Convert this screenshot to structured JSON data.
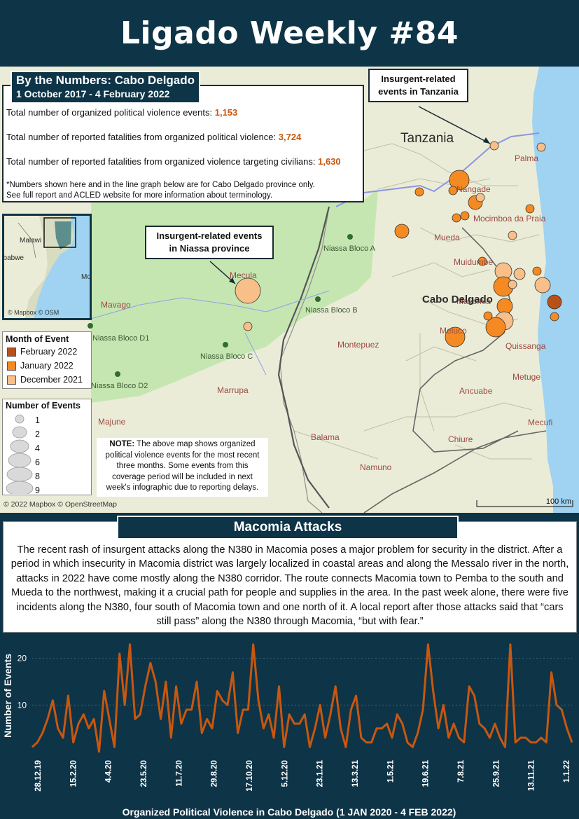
{
  "header": {
    "title": "Ligado Weekly #84"
  },
  "numbers": {
    "title": "By the Numbers: Cabo Delgado",
    "subtitle": "1 October 2017 - 4 February 2022",
    "stat1_label": "Total number of organized political violence events: ",
    "stat1_value": "1,153",
    "stat2_label": "Total number of reported fatalities from organized political violence: ",
    "stat2_value": "3,724",
    "stat3_label": "Total number of reported fatalities from organized violence targeting civilians: ",
    "stat3_value": "1,630",
    "note_line1": "*Numbers shown here and in the line graph below are for Cabo Delgado province only.",
    "note_line2": "See full report and ACLED website for more information about terminology."
  },
  "map": {
    "callouts": {
      "tanzania_events": "Insurgent-related events in Tanzania",
      "niassa_events": "Insurgent-related events in Niassa province"
    },
    "country_label": "Tanzania",
    "province_label": "Cabo Delgado",
    "district_labels": [
      "Palma",
      "Nangade",
      "Mocimboa da Praia",
      "Mueda",
      "Muidumbe",
      "Meluco",
      "Macomia",
      "Quissanga",
      "Metuge",
      "Ancuabe",
      "Montepuez",
      "Chiure",
      "Mecufi",
      "Balama",
      "Namuno",
      "Marrupa",
      "Mecula",
      "Mavago",
      "Majune"
    ],
    "concession_labels": [
      "Niassa Bloco A",
      "Niassa Bloco B",
      "Niassa Bloco C",
      "Niassa Bloco D1",
      "Niassa Bloco D2"
    ],
    "inset_labels": [
      "Malawi",
      "Zimbabwe",
      "Mozambique"
    ],
    "inset_attribution": "© Mapbox © OSM",
    "attribution": "© 2022 Mapbox © OpenStreetMap",
    "scale": "100 km",
    "note_bold": "NOTE:",
    "note_text": " The above map shows organized political violence events for the most recent three months. Some events from this coverage period will be included in next week's infographic due to reporting delays.",
    "colors": {
      "feb_2022": "#b8501a",
      "jan_2022": "#f58a23",
      "dec_2021": "#f8bf88",
      "reserve": "#c6e6b1",
      "land": "#ebecd7",
      "water": "#9fd3f1"
    },
    "events": [
      {
        "month": "dec_2021",
        "count": 1,
        "place": "Tanzania border"
      },
      {
        "month": "dec_2021",
        "count": 1,
        "place": "Palma"
      },
      {
        "month": "jan_2022",
        "count": 1,
        "place": "Tanzania"
      },
      {
        "month": "jan_2022",
        "count": 6,
        "place": "Nangade"
      },
      {
        "month": "jan_2022",
        "count": 3,
        "place": "Nangade"
      },
      {
        "month": "jan_2022",
        "count": 1,
        "place": "Nangade"
      },
      {
        "month": "jan_2022",
        "count": 3,
        "place": "Nangade"
      },
      {
        "month": "dec_2021",
        "count": 1,
        "place": "Nangade"
      },
      {
        "month": "jan_2022",
        "count": 1,
        "place": "Mocimboa da Praia"
      },
      {
        "month": "jan_2022",
        "count": 1,
        "place": "Mocimboa da Praia"
      },
      {
        "month": "jan_2022",
        "count": 1,
        "place": "Mocimboa da Praia"
      },
      {
        "month": "dec_2021",
        "count": 1,
        "place": "Mocimboa da Praia"
      },
      {
        "month": "jan_2022",
        "count": 3,
        "place": "Mueda"
      },
      {
        "month": "jan_2022",
        "count": 1,
        "place": "Muidumbe"
      },
      {
        "month": "dec_2021",
        "count": 4,
        "place": "Macomia"
      },
      {
        "month": "jan_2022",
        "count": 6,
        "place": "Macomia"
      },
      {
        "month": "dec_2021",
        "count": 2,
        "place": "Macomia"
      },
      {
        "month": "jan_2022",
        "count": 3,
        "place": "Macomia"
      },
      {
        "month": "dec_2021",
        "count": 4,
        "place": "Macomia"
      },
      {
        "month": "jan_2022",
        "count": 3,
        "place": "Macomia"
      },
      {
        "month": "jan_2022",
        "count": 1,
        "place": "Macomia"
      },
      {
        "month": "jan_2022",
        "count": 6,
        "place": "Macomia"
      },
      {
        "month": "jan_2022",
        "count": 6,
        "place": "Meluco"
      },
      {
        "month": "dec_2021",
        "count": 1,
        "place": "Macomia coast"
      },
      {
        "month": "dec_2021",
        "count": 4,
        "place": "Macomia coast"
      },
      {
        "month": "feb_2022",
        "count": 3,
        "place": "Macomia coast"
      },
      {
        "month": "jan_2022",
        "count": 1,
        "place": "Macomia coast"
      },
      {
        "month": "dec_2021",
        "count": 9,
        "place": "Niassa"
      },
      {
        "month": "dec_2021",
        "count": 1,
        "place": "Niassa"
      }
    ]
  },
  "legend": {
    "month_title": "Month of Event",
    "months": [
      {
        "label": "February 2022",
        "color": "#b8501a"
      },
      {
        "label": "January 2022",
        "color": "#f58a23"
      },
      {
        "label": "December 2021",
        "color": "#f8bf88"
      }
    ],
    "size_title": "Number of Events",
    "sizes": [
      "1",
      "2",
      "4",
      "6",
      "8",
      "9"
    ]
  },
  "macomia": {
    "title": "Macomia Attacks",
    "body": "The recent rash of insurgent attacks along the N380 in Macomia poses a major problem for security in the district. After a period in which insecurity in Macomia district was largely localized in coastal areas and along the Messalo river in the north, attacks in 2022 have come mostly along the N380 corridor. The route connects Macomia town to Pemba to the south and Mueda to the northwest, making it a crucial path for people and supplies in the area. In the past week alone, there were five incidents along the N380, four south of Macomia town and one north of it. A local report after those attacks said that “cars still pass” along the N380 through Macomia, “but with fear.”"
  },
  "chart_data": {
    "type": "line",
    "title": "",
    "xlabel": "Organized Political Violence in Cabo Delgado (1 JAN 2020 - 4 FEB 2022)",
    "ylabel": "Number of Events",
    "ylim": [
      0,
      24
    ],
    "yticks": [
      10,
      20
    ],
    "xtick_labels": [
      "28.12.19",
      "15.2.20",
      "4.4.20",
      "23.5.20",
      "11.7.20",
      "29.8.20",
      "17.10.20",
      "5.12.20",
      "23.1.21",
      "13.3.21",
      "1.5.21",
      "19.6.21",
      "7.8.21",
      "25.9.21",
      "13.11.21",
      "1.1.22"
    ],
    "line_color": "#c8570f",
    "values": [
      1,
      2,
      4,
      7,
      11,
      5,
      3,
      12,
      2,
      6,
      8,
      5,
      7,
      0,
      13,
      7,
      1,
      21,
      10,
      23,
      7,
      8,
      14,
      19,
      15,
      7,
      15,
      3,
      14,
      6,
      9,
      9,
      15,
      4,
      7,
      5,
      13,
      11,
      10,
      17,
      4,
      9,
      9,
      23,
      11,
      5,
      8,
      3,
      14,
      1,
      8,
      6,
      6,
      8,
      1,
      5,
      10,
      3,
      8,
      14,
      5,
      1,
      9,
      12,
      3,
      2,
      2,
      5,
      5,
      6,
      3,
      8,
      6,
      2,
      1,
      4,
      9,
      23,
      13,
      5,
      10,
      3,
      6,
      3,
      2,
      14,
      12,
      6,
      5,
      3,
      6,
      3,
      1,
      23,
      2,
      3,
      3,
      2,
      2,
      3,
      2,
      17,
      10,
      9,
      5,
      2
    ]
  }
}
